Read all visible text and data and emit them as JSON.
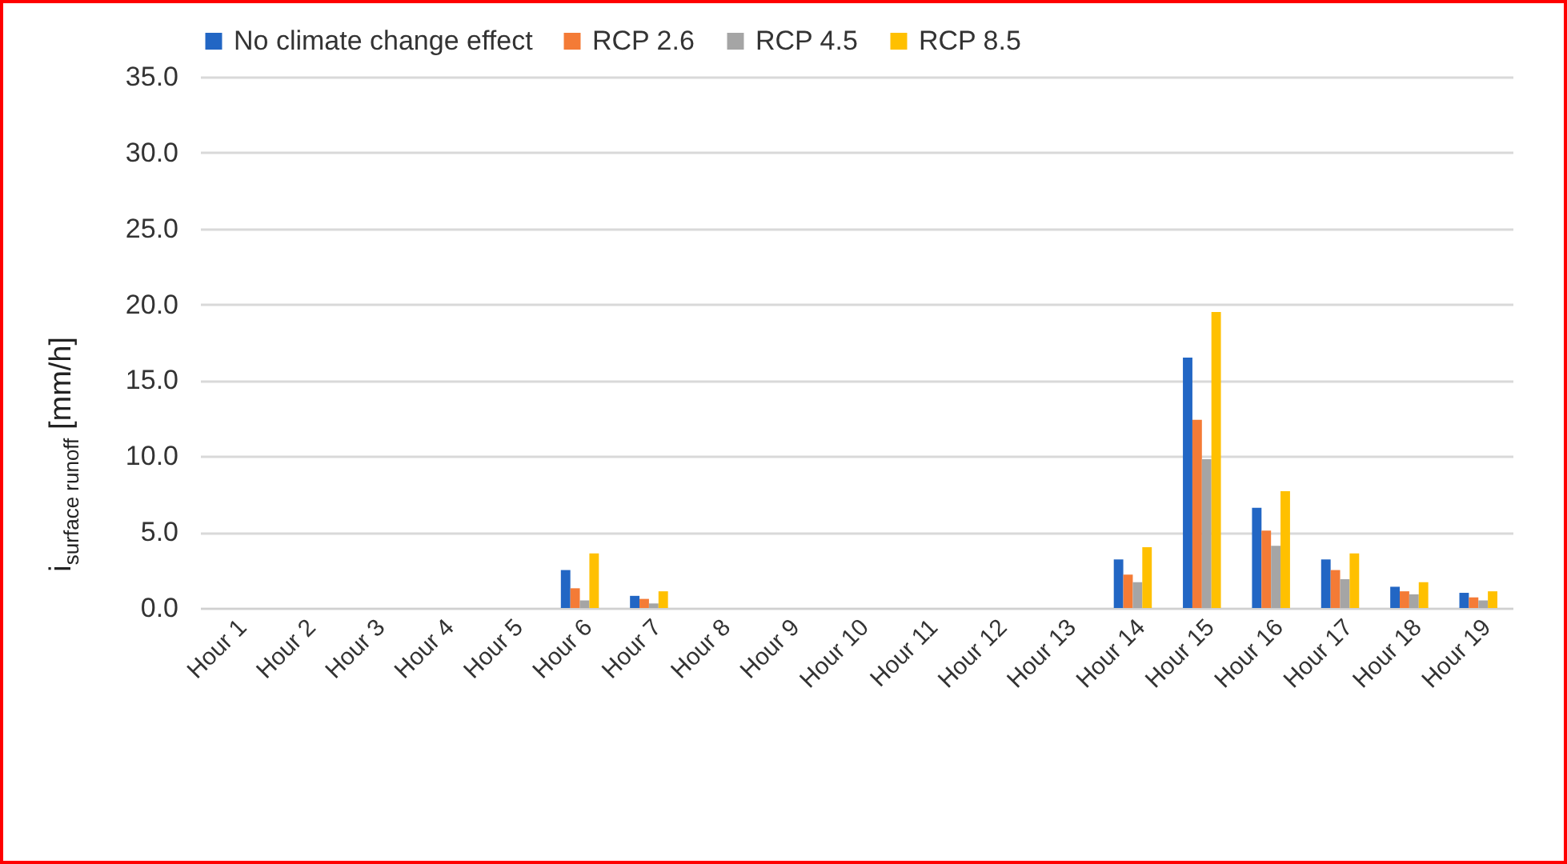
{
  "chart_data": {
    "type": "bar",
    "ylabel": "i$_{surface runoff}$ [mm/h]",
    "categories": [
      "Hour 1",
      "Hour 2",
      "Hour 3",
      "Hour 4",
      "Hour 5",
      "Hour 6",
      "Hour 7",
      "Hour 8",
      "Hour 9",
      "Hour 10",
      "Hour 11",
      "Hour 12",
      "Hour 13",
      "Hour 14",
      "Hour 15",
      "Hour 16",
      "Hour 17",
      "Hour 18",
      "Hour 19"
    ],
    "series": [
      {
        "name": "No climate change effect",
        "color": "#2266c4",
        "values": [
          0,
          0,
          0,
          0,
          0,
          2.5,
          0.8,
          0,
          0,
          0,
          0,
          0,
          0,
          3.2,
          16.5,
          6.6,
          3.2,
          1.4,
          1.0
        ]
      },
      {
        "name": "RCP 2.6",
        "color": "#f47b36",
        "values": [
          0,
          0,
          0,
          0,
          0,
          1.3,
          0.6,
          0,
          0,
          0,
          0,
          0,
          0,
          2.2,
          12.4,
          5.1,
          2.5,
          1.1,
          0.7
        ]
      },
      {
        "name": "RCP 4.5",
        "color": "#a5a5a5",
        "values": [
          0,
          0,
          0,
          0,
          0,
          0.5,
          0.3,
          0,
          0,
          0,
          0,
          0,
          0,
          1.7,
          9.8,
          4.1,
          1.9,
          0.9,
          0.5
        ]
      },
      {
        "name": "RCP 8.5",
        "color": "#ffc000",
        "values": [
          0,
          0,
          0,
          0,
          0,
          3.6,
          1.1,
          0,
          0,
          0,
          0,
          0,
          0,
          4.0,
          19.5,
          7.7,
          3.6,
          1.7,
          1.1
        ]
      }
    ],
    "ylim": [
      0,
      35
    ],
    "yticks": [
      {
        "value": 0,
        "label": "0.0"
      },
      {
        "value": 5,
        "label": "5.0"
      },
      {
        "value": 10,
        "label": "10.0"
      },
      {
        "value": 15,
        "label": "15.0"
      },
      {
        "value": 20,
        "label": "20.0"
      },
      {
        "value": 25,
        "label": "25.0"
      },
      {
        "value": 30,
        "label": "30.0"
      },
      {
        "value": 35,
        "label": "35.0"
      }
    ],
    "grid": "y",
    "legend": "top"
  }
}
